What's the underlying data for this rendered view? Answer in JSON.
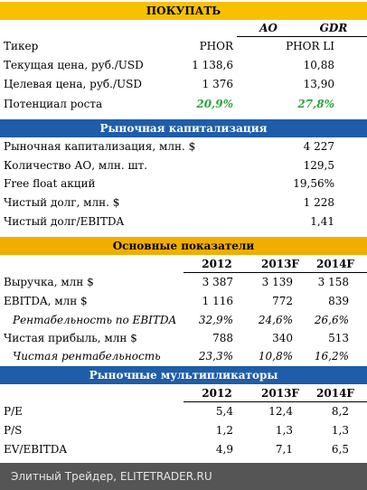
{
  "section1": {
    "title": "ПОКУПАТЬ",
    "col_ao": "AO",
    "col_gdr": "GDR",
    "rows": [
      {
        "label": "Тикер",
        "ao": "PHOR",
        "gdr": "PHOR LI"
      },
      {
        "label": "Текущая цена, руб./USD",
        "ao": "1 138,6",
        "gdr": "10,88"
      },
      {
        "label": "Целевая цена, руб./USD",
        "ao": "1 376",
        "gdr": "13,90"
      },
      {
        "label": "Потенциал роста",
        "ao": "20,9%",
        "gdr": "27,8%"
      }
    ],
    "highlight_color": "#2aa53a"
  },
  "section2": {
    "title": "Рыночная капитализация",
    "rows": [
      {
        "label": "Рыночная капитализация, млн. $",
        "value": "4 227"
      },
      {
        "label": "Количество АО, млн. шт.",
        "value": "129,5"
      },
      {
        "label": "Free float акций",
        "value": "19,56%"
      },
      {
        "label": "Чистый долг, млн. $",
        "value": "1 228"
      },
      {
        "label": "Чистый долг/EBITDA",
        "value": "1,41"
      }
    ]
  },
  "section3": {
    "title": "Основные показатели",
    "years": [
      "2012",
      "2013F",
      "2014F"
    ],
    "rows": [
      {
        "label": "Выручка, млн $",
        "v": [
          "3 387",
          "3 139",
          "3 158"
        ]
      },
      {
        "label": "EBITDA, млн $",
        "v": [
          "1 116",
          "772",
          "839"
        ]
      },
      {
        "label": "Рентабельность по EBITDA",
        "v": [
          "32,9%",
          "24,6%",
          "26,6%"
        ]
      },
      {
        "label": "Чистая прибыль, млн $",
        "v": [
          "788",
          "340",
          "513"
        ]
      },
      {
        "label": "Чистая рентабельность",
        "v": [
          "23,3%",
          "10,8%",
          "16,2%"
        ]
      }
    ]
  },
  "section4": {
    "title": "Рыночные мультипликаторы",
    "years": [
      "2012",
      "2013F",
      "2014F"
    ],
    "rows": [
      {
        "label": "P/E",
        "v": [
          "5,4",
          "12,4",
          "8,2"
        ]
      },
      {
        "label": "P/S",
        "v": [
          "1,2",
          "1,3",
          "1,3"
        ]
      },
      {
        "label": "EV/EBITDA",
        "v": [
          "4,9",
          "7,1",
          "6,5"
        ]
      }
    ]
  },
  "footer": {
    "text": "Элитный Трейдер, ELITETRADER.RU"
  },
  "colors": {
    "yellow": "#f8c100",
    "blue": "#1f5da8",
    "gold": "#f0ae00",
    "footer": "#555555"
  }
}
